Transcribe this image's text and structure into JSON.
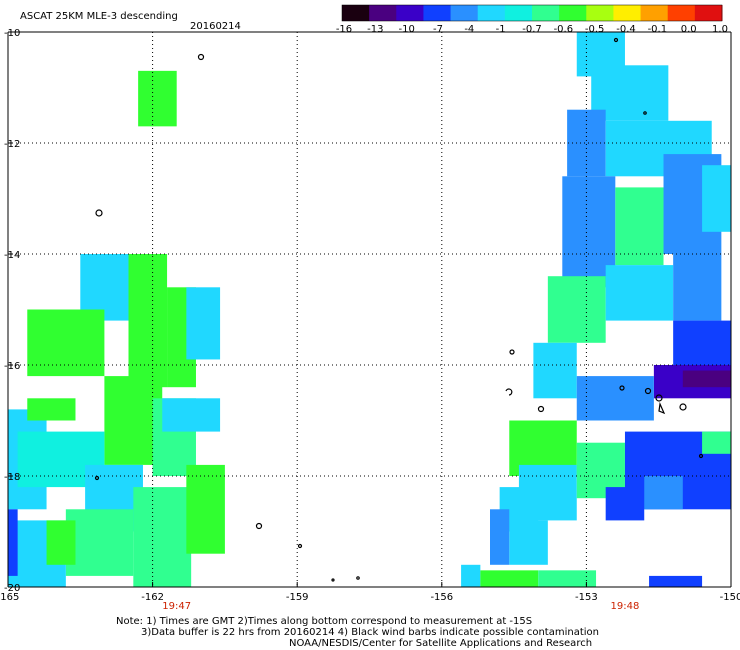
{
  "chart_data": {
    "type": "heatmap",
    "title": "ASCAT 25KM MLE-3 descending",
    "date": "20160214",
    "colorbar": {
      "tick_labels": [
        "-16",
        "-13",
        "-10",
        "-7",
        "-4",
        "-1",
        "-0.7",
        "-0.6",
        "-0.5",
        "-0.4",
        "-0.1",
        "0.0",
        "1.0"
      ],
      "colors": [
        "#1a0010",
        "#4a0080",
        "#3a00c8",
        "#1040ff",
        "#2a90ff",
        "#20d8ff",
        "#10f0e0",
        "#30ff90",
        "#30ff30",
        "#a8ff10",
        "#ffee00",
        "#ffa000",
        "#ff4000",
        "#e01010"
      ]
    },
    "x_axis": {
      "ticks": [
        -165,
        -162,
        -159,
        -156,
        -153,
        -150
      ],
      "tick_labels": [
        "-165",
        "-162",
        "-159",
        "-156",
        "-153",
        "-150"
      ],
      "range": [
        -165,
        -150
      ]
    },
    "y_axis": {
      "ticks": [
        -10,
        -12,
        -14,
        -16,
        -18,
        -20
      ],
      "tick_labels": [
        "-10",
        "-12",
        "-14",
        "-16",
        "-18",
        "-20"
      ],
      "range": [
        -20,
        -10
      ]
    },
    "grid": true,
    "pass_times": [
      {
        "label": "19:47",
        "lon": -161.5
      },
      {
        "label": "19:48",
        "lon": -152.2
      }
    ],
    "swath_blocks": [
      {
        "lon": [
          -162.3,
          -161.5
        ],
        "lat": [
          -11.7,
          -10.7
        ],
        "color": "#30ff30"
      },
      {
        "lon": [
          -162.5,
          -161.7
        ],
        "lat": [
          -16.4,
          -14.0
        ],
        "color": "#30ff30"
      },
      {
        "lon": [
          -161.7,
          -161.1
        ],
        "lat": [
          -16.4,
          -14.6
        ],
        "color": "#30ff30"
      },
      {
        "lon": [
          -163.5,
          -162.5
        ],
        "lat": [
          -15.2,
          -14.0
        ],
        "color": "#20d8ff"
      },
      {
        "lon": [
          -161.3,
          -160.6
        ],
        "lat": [
          -15.9,
          -14.6
        ],
        "color": "#20d8ff"
      },
      {
        "lon": [
          -164.6,
          -163.0
        ],
        "lat": [
          -16.2,
          -15.0
        ],
        "color": "#30ff30"
      },
      {
        "lon": [
          -163.0,
          -161.8
        ],
        "lat": [
          -17.8,
          -16.2
        ],
        "color": "#30ff30"
      },
      {
        "lon": [
          -162.0,
          -161.1
        ],
        "lat": [
          -18.0,
          -16.6
        ],
        "color": "#30ff90"
      },
      {
        "lon": [
          -161.8,
          -160.6
        ],
        "lat": [
          -17.2,
          -16.6
        ],
        "color": "#20d8ff"
      },
      {
        "lon": [
          -165.0,
          -164.2
        ],
        "lat": [
          -18.6,
          -16.8
        ],
        "color": "#20d8ff"
      },
      {
        "lon": [
          -164.6,
          -163.6
        ],
        "lat": [
          -17.0,
          -16.6
        ],
        "color": "#30ff30"
      },
      {
        "lon": [
          -164.8,
          -163.0
        ],
        "lat": [
          -18.2,
          -17.2
        ],
        "color": "#10f0e0"
      },
      {
        "lon": [
          -163.4,
          -162.2
        ],
        "lat": [
          -19.0,
          -17.8
        ],
        "color": "#20d8ff"
      },
      {
        "lon": [
          -163.8,
          -162.4
        ],
        "lat": [
          -19.8,
          -18.6
        ],
        "color": "#30ff90"
      },
      {
        "lon": [
          -162.4,
          -161.2
        ],
        "lat": [
          -20.0,
          -18.2
        ],
        "color": "#30ff90"
      },
      {
        "lon": [
          -161.3,
          -160.5
        ],
        "lat": [
          -19.4,
          -17.8
        ],
        "color": "#30ff30"
      },
      {
        "lon": [
          -165.0,
          -163.8
        ],
        "lat": [
          -20.0,
          -18.8
        ],
        "color": "#20d8ff"
      },
      {
        "lon": [
          -165.0,
          -164.8
        ],
        "lat": [
          -19.8,
          -18.6
        ],
        "color": "#1040ff"
      },
      {
        "lon": [
          -164.2,
          -163.6
        ],
        "lat": [
          -19.6,
          -18.8
        ],
        "color": "#30ff30"
      },
      {
        "lon": [
          -153.2,
          -152.2
        ],
        "lat": [
          -10.8,
          -10.0
        ],
        "color": "#20d8ff"
      },
      {
        "lon": [
          -152.9,
          -151.3
        ],
        "lat": [
          -11.6,
          -10.6
        ],
        "color": "#20d8ff"
      },
      {
        "lon": [
          -153.4,
          -152.6
        ],
        "lat": [
          -12.6,
          -11.4
        ],
        "color": "#2a90ff"
      },
      {
        "lon": [
          -152.6,
          -150.4
        ],
        "lat": [
          -12.6,
          -11.6
        ],
        "color": "#20d8ff"
      },
      {
        "lon": [
          -153.5,
          -152.4
        ],
        "lat": [
          -14.6,
          -12.6
        ],
        "color": "#2a90ff"
      },
      {
        "lon": [
          -152.4,
          -151.4
        ],
        "lat": [
          -14.2,
          -12.8
        ],
        "color": "#30ff90"
      },
      {
        "lon": [
          -151.4,
          -150.2
        ],
        "lat": [
          -14.0,
          -12.2
        ],
        "color": "#2a90ff"
      },
      {
        "lon": [
          -150.6,
          -150.0
        ],
        "lat": [
          -13.6,
          -12.4
        ],
        "color": "#20d8ff"
      },
      {
        "lon": [
          -153.8,
          -152.6
        ],
        "lat": [
          -15.6,
          -14.4
        ],
        "color": "#30ff90"
      },
      {
        "lon": [
          -152.6,
          -151.2
        ],
        "lat": [
          -15.2,
          -14.2
        ],
        "color": "#20d8ff"
      },
      {
        "lon": [
          -151.2,
          -150.2
        ],
        "lat": [
          -15.2,
          -14.0
        ],
        "color": "#2a90ff"
      },
      {
        "lon": [
          -151.2,
          -150.0
        ],
        "lat": [
          -16.4,
          -15.2
        ],
        "color": "#1040ff"
      },
      {
        "lon": [
          -151.6,
          -150.0
        ],
        "lat": [
          -16.6,
          -16.0
        ],
        "color": "#3a00c8"
      },
      {
        "lon": [
          -151.0,
          -150.0
        ],
        "lat": [
          -16.4,
          -16.1
        ],
        "color": "#4a0080"
      },
      {
        "lon": [
          -154.1,
          -153.2
        ],
        "lat": [
          -16.6,
          -15.6
        ],
        "color": "#20d8ff"
      },
      {
        "lon": [
          -153.2,
          -151.6
        ],
        "lat": [
          -17.0,
          -16.2
        ],
        "color": "#2a90ff"
      },
      {
        "lon": [
          -154.6,
          -153.2
        ],
        "lat": [
          -18.0,
          -17.0
        ],
        "color": "#30ff30"
      },
      {
        "lon": [
          -154.4,
          -153.2
        ],
        "lat": [
          -18.8,
          -17.8
        ],
        "color": "#20d8ff"
      },
      {
        "lon": [
          -153.2,
          -152.2
        ],
        "lat": [
          -18.4,
          -17.4
        ],
        "color": "#30ff90"
      },
      {
        "lon": [
          -152.2,
          -150.0
        ],
        "lat": [
          -18.6,
          -17.2
        ],
        "color": "#1040ff"
      },
      {
        "lon": [
          -150.6,
          -150.0
        ],
        "lat": [
          -17.6,
          -17.2
        ],
        "color": "#30ff90"
      },
      {
        "lon": [
          -154.8,
          -154.0
        ],
        "lat": [
          -19.0,
          -18.2
        ],
        "color": "#20d8ff"
      },
      {
        "lon": [
          -154.6,
          -153.8
        ],
        "lat": [
          -19.6,
          -18.8
        ],
        "color": "#20d8ff"
      },
      {
        "lon": [
          -155.0,
          -154.6
        ],
        "lat": [
          -19.6,
          -18.6
        ],
        "color": "#2a90ff"
      },
      {
        "lon": [
          -152.6,
          -151.8
        ],
        "lat": [
          -18.8,
          -18.2
        ],
        "color": "#1040ff"
      },
      {
        "lon": [
          -151.8,
          -151.0
        ],
        "lat": [
          -18.6,
          -18.0
        ],
        "color": "#2a90ff"
      },
      {
        "lon": [
          -155.6,
          -155.2
        ],
        "lat": [
          -20.0,
          -19.6
        ],
        "color": "#20d8ff"
      },
      {
        "lon": [
          -155.2,
          -154.0
        ],
        "lat": [
          -20.0,
          -19.7
        ],
        "color": "#30ff30"
      },
      {
        "lon": [
          -154.0,
          -152.8
        ],
        "lat": [
          -20.0,
          -19.7
        ],
        "color": "#30ff90"
      },
      {
        "lon": [
          -151.7,
          -150.6
        ],
        "lat": [
          -20.0,
          -19.8
        ],
        "color": "#1040ff"
      }
    ]
  },
  "notes": {
    "line1": "Note: 1) Times are GMT 2)Times along bottom correspond to measurement at -15S",
    "line2": "3)Data buffer is 22 hrs from 20160214 4) Black wind barbs indicate possible contamination",
    "line3": "NOAA/NESDIS/Center for Satellite Applications and Research"
  }
}
